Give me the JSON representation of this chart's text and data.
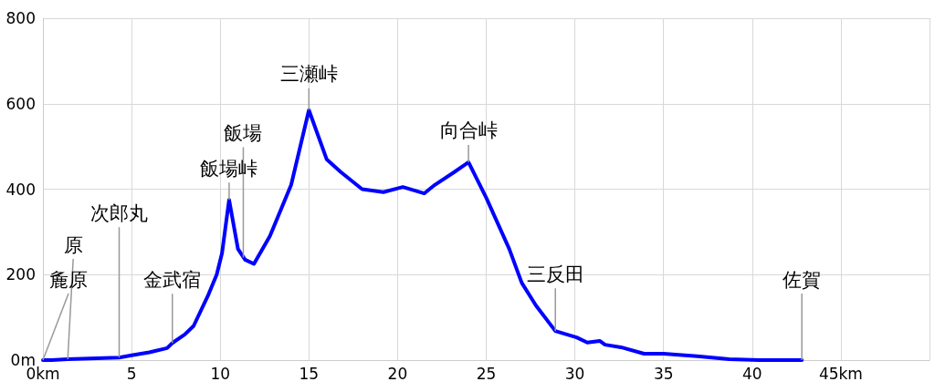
{
  "chart_data": {
    "type": "line",
    "x": [
      0,
      0.5,
      1.4,
      4.3,
      5,
      6,
      7,
      7.3,
      8,
      8.5,
      9.3,
      9.8,
      10.1,
      10.5,
      11.0,
      11.4,
      11.9,
      12.8,
      14.0,
      15.0,
      16.0,
      16.8,
      18.0,
      19.2,
      20.3,
      21.5,
      22.1,
      23.2,
      24.0,
      25.0,
      26.3,
      27.0,
      27.8,
      28.9,
      30.1,
      30.7,
      31.4,
      31.7,
      32.6,
      33.9,
      35.0,
      36.9,
      38.7,
      40.4,
      42.8
    ],
    "series": [
      {
        "color": "#0000ff",
        "values": [
          0,
          0,
          2,
          6,
          11,
          18,
          28,
          40,
          60,
          80,
          150,
          200,
          250,
          375,
          260,
          235,
          225,
          290,
          410,
          585,
          470,
          440,
          400,
          393,
          405,
          390,
          410,
          440,
          463,
          380,
          260,
          181,
          128,
          68,
          53,
          41,
          45,
          36,
          30,
          15,
          15,
          9,
          2,
          0,
          0
        ]
      }
    ],
    "xlim": [
      0,
      50
    ],
    "xticks": [
      {
        "value": 0,
        "label": "0km"
      },
      5,
      10,
      15,
      20,
      25,
      30,
      35,
      40,
      {
        "value": 45,
        "label": "45km"
      },
      {
        "value": 50,
        "label": null
      }
    ],
    "ylim": [
      0,
      800
    ],
    "yticks": [
      {
        "value": 0,
        "label": "0m"
      },
      200,
      400,
      600,
      800
    ],
    "grid": true,
    "marker": "none",
    "line_style": "solid",
    "annotations": [
      {
        "text": "麁原",
        "x": 0,
        "y": 0
      },
      {
        "text": "原",
        "x": 1.4,
        "y": 2
      },
      {
        "text": "次郎丸",
        "x": 4.3,
        "y": 6
      },
      {
        "text": "金武宿",
        "x": 7.3,
        "y": 40
      },
      {
        "text": "飯場峠",
        "x": 10.5,
        "y": 375
      },
      {
        "text": "飯場",
        "x": 11.3,
        "y": 240
      },
      {
        "text": "三瀬峠",
        "x": 15.0,
        "y": 585
      },
      {
        "text": "向合峠",
        "x": 24.0,
        "y": 463
      },
      {
        "text": "三反田",
        "x": 28.9,
        "y": 68
      },
      {
        "text": "佐賀",
        "x": 42.8,
        "y": 0
      }
    ]
  }
}
